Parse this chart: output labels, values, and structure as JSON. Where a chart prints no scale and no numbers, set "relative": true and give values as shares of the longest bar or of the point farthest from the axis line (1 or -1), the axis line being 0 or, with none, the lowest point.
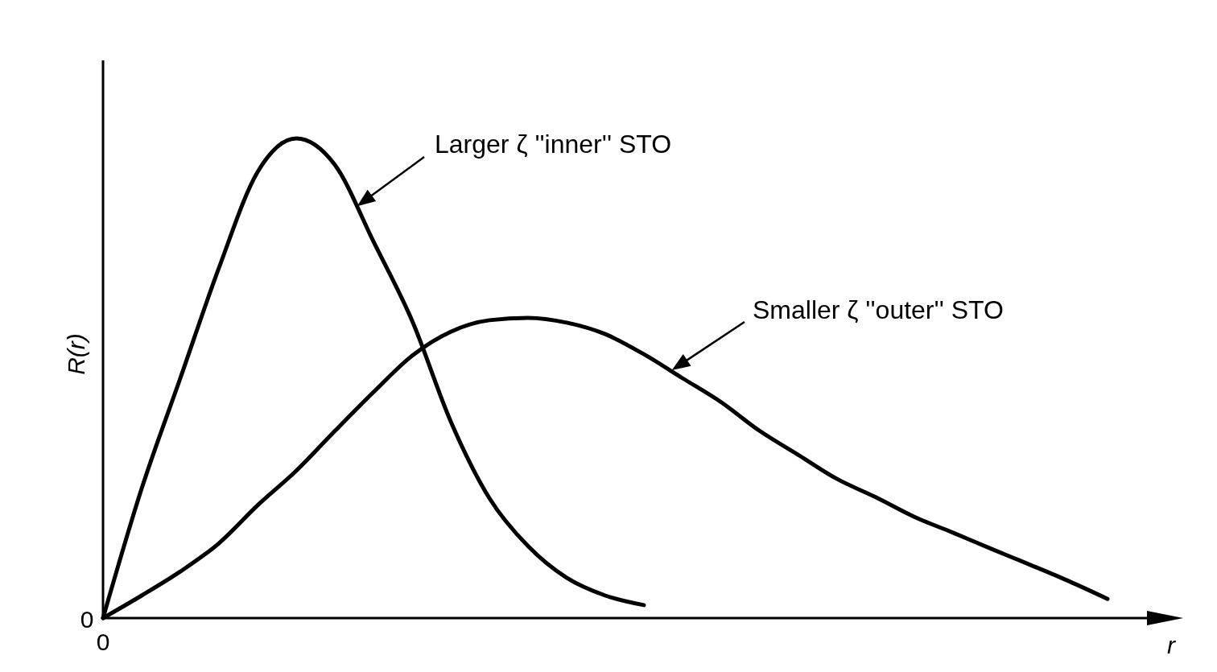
{
  "chart_data": {
    "type": "line",
    "relative": true,
    "xlabel": "r",
    "ylabel": "R(r)",
    "categories": [
      null,
      null,
      null,
      null,
      null,
      null,
      null,
      null,
      null,
      null,
      null,
      null,
      null,
      null,
      null,
      null,
      null,
      null,
      null,
      null,
      null,
      null,
      null,
      null,
      null,
      null,
      null
    ],
    "series": [
      {
        "color": "#000000",
        "values": [
          0,
          0.27,
          0.5,
          0.73,
          0.93,
          1,
          0.945,
          0.785,
          0.62,
          0.41,
          0.25,
          0.15,
          0.084,
          0.047,
          0.027,
          null,
          null,
          null,
          null,
          null,
          null,
          null,
          null,
          null,
          null,
          null,
          null
        ]
      },
      {
        "color": "#000000",
        "values": [
          0,
          0.047,
          0.097,
          0.156,
          0.235,
          0.307,
          0.39,
          0.471,
          0.547,
          0.597,
          0.621,
          0.626,
          0.616,
          0.592,
          0.55,
          0.5,
          0.45,
          0.39,
          0.34,
          0.29,
          0.252,
          0.211,
          0.178,
          0.144,
          0.111,
          0.077,
          0.04
        ]
      }
    ],
    "annotations": [
      "0",
      "0",
      "Larger ζ ''inner'' STO",
      "Smaller ζ ''outer'' STO"
    ]
  }
}
